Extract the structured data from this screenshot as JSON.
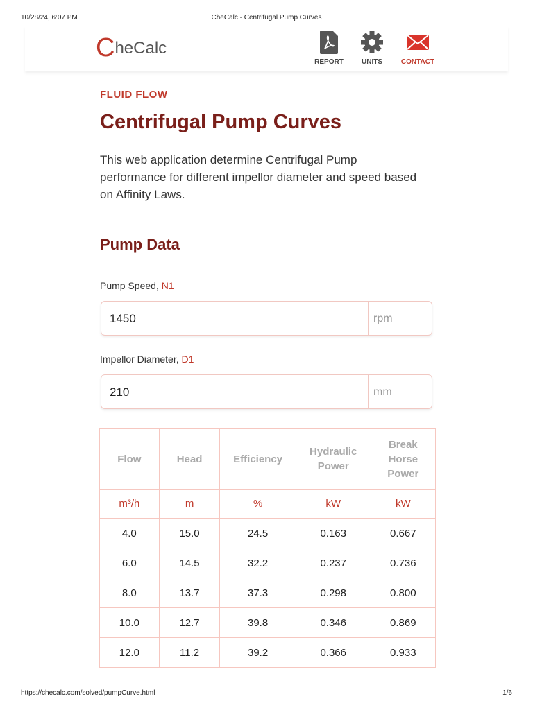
{
  "browser": {
    "datetime": "10/28/24, 6:07 PM",
    "page_title": "CheCalc - Centrifugal Pump Curves",
    "url": "https://checalc.com/solved/pumpCurve.html",
    "page_number": "1/6"
  },
  "header": {
    "logo_initial": "C",
    "logo_rest": "heCalc",
    "nav": [
      "REPORT",
      "UNITS",
      "CONTACT"
    ]
  },
  "content": {
    "category": "FLUID FLOW",
    "title": "Centrifugal Pump Curves",
    "description": "This web application determine Centrifugal Pump performance for different impellor diameter and speed based on Affinity Laws.",
    "section": "Pump Data",
    "fields": [
      {
        "label": "Pump Speed, ",
        "symbol": "N1",
        "value": "1450",
        "unit": "rpm"
      },
      {
        "label": "Impellor Diameter, ",
        "symbol": "D1",
        "value": "210",
        "unit": "mm"
      }
    ]
  },
  "table": {
    "headers": [
      "Flow",
      "Head",
      "Efficiency",
      "Hydraulic Power",
      "Break Horse Power"
    ],
    "units": [
      "m³/h",
      "m",
      "%",
      "kW",
      "kW"
    ],
    "rows": [
      [
        "4.0",
        "15.0",
        "24.5",
        "0.163",
        "0.667"
      ],
      [
        "6.0",
        "14.5",
        "32.2",
        "0.237",
        "0.736"
      ],
      [
        "8.0",
        "13.7",
        "37.3",
        "0.298",
        "0.800"
      ],
      [
        "10.0",
        "12.7",
        "39.8",
        "0.346",
        "0.869"
      ],
      [
        "12.0",
        "11.2",
        "39.2",
        "0.366",
        "0.933"
      ]
    ]
  }
}
